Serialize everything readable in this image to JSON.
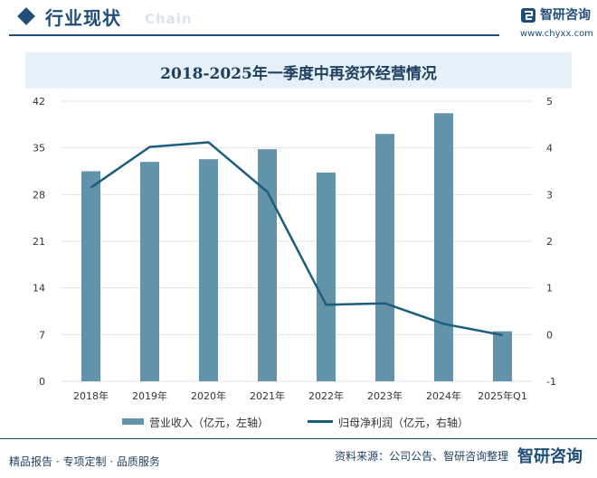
{
  "header": {
    "title": "行业现状",
    "subtitle": "Chain",
    "brand_name": "智研咨询",
    "brand_url": "www.chyxx.com"
  },
  "chart_data": {
    "type": "bar+line",
    "title": "2018-2025年一季度中再资环经营情况",
    "categories": [
      "2018年",
      "2019年",
      "2020年",
      "2021年",
      "2022年",
      "2023年",
      "2024年",
      "2025年Q1"
    ],
    "series": [
      {
        "name": "营业收入（亿元，左轴）",
        "type": "bar",
        "axis": "left",
        "values": [
          31.5,
          32.9,
          33.3,
          34.8,
          31.3,
          37.1,
          40.2,
          7.5
        ]
      },
      {
        "name": "归母净利润（亿元，右轴）",
        "type": "line",
        "axis": "right",
        "values": [
          3.15,
          4.02,
          4.12,
          3.06,
          0.64,
          0.67,
          0.23,
          -0.01
        ]
      }
    ],
    "y_left": {
      "min": 0,
      "max": 42,
      "ticks": [
        "0",
        "7",
        "14",
        "21",
        "28",
        "35",
        "42"
      ]
    },
    "y_right": {
      "min": -1,
      "max": 5,
      "ticks": [
        "-1",
        "0",
        "1",
        "2",
        "3",
        "4",
        "5"
      ]
    },
    "grid": true,
    "legend_position": "bottom",
    "colors": {
      "bar": "#6293aa",
      "line": "#1b5d7c",
      "grid": "#e3e3e3"
    }
  },
  "footer": {
    "left": "精品报告 · 专项定制 · 品质服务",
    "source": "资料来源：公司公告、智研咨询整理",
    "logo_text": "智研咨询"
  }
}
